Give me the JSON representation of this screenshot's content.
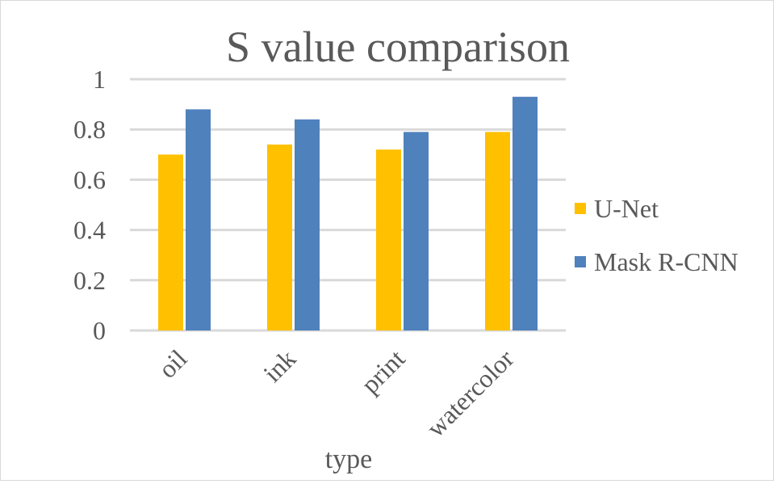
{
  "chart_data": {
    "type": "bar",
    "title": "S value comparison",
    "xlabel": "type",
    "ylabel": "",
    "categories": [
      "oil",
      "ink",
      "print",
      "watercolor"
    ],
    "series": [
      {
        "name": "U-Net",
        "values": [
          0.7,
          0.74,
          0.72,
          0.79
        ],
        "color": "#FFC000"
      },
      {
        "name": "Mask R-CNN",
        "values": [
          0.88,
          0.84,
          0.79,
          0.93
        ],
        "color": "#4F81BD"
      }
    ],
    "ylim": [
      0,
      1
    ],
    "yticks": [
      "0",
      "0.2",
      "0.4",
      "0.6",
      "0.8",
      "1"
    ],
    "ytick_values": [
      0,
      0.2,
      0.4,
      0.6,
      0.8,
      1
    ],
    "grid": true,
    "legend_position": "right"
  }
}
